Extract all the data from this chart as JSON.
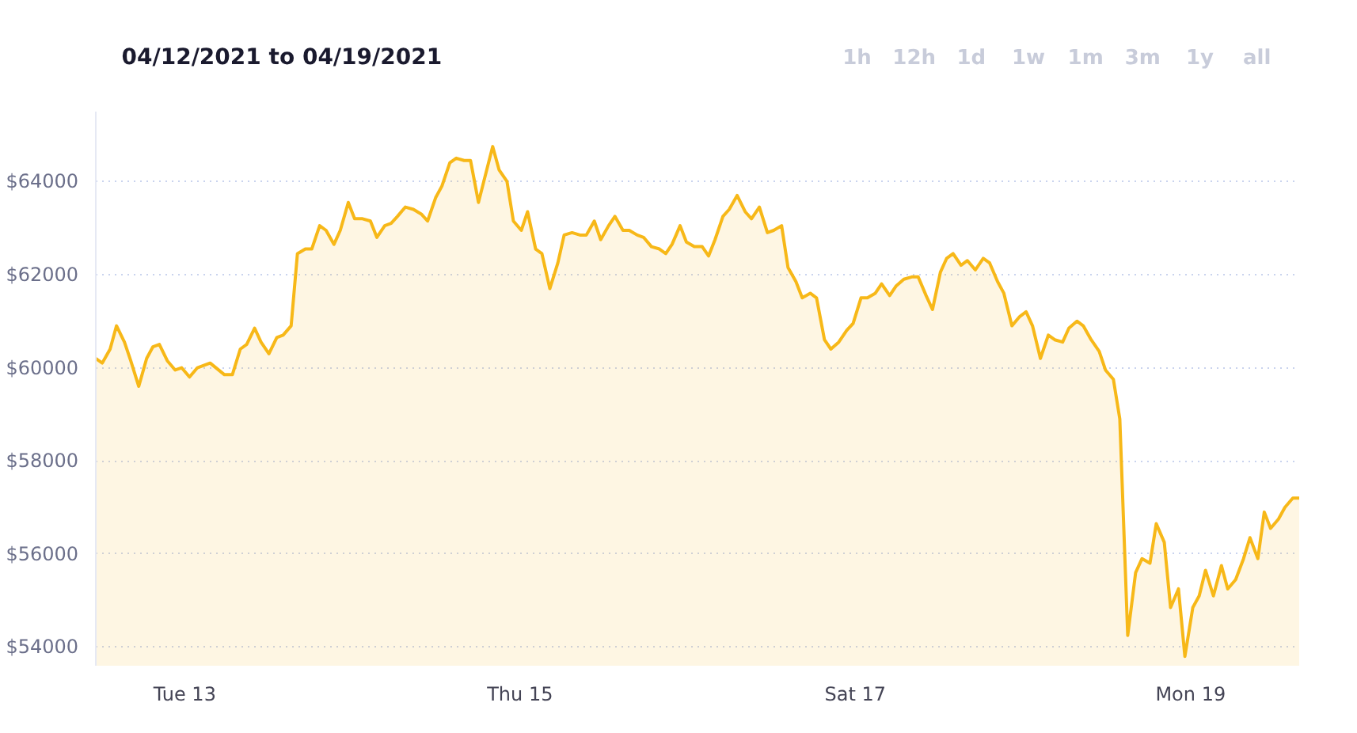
{
  "chart_data": {
    "type": "area",
    "title": "04/12/2021 to 04/19/2021",
    "annotations": [
      "1h",
      "12h",
      "1d",
      "1w",
      "1m",
      "3m",
      "1y",
      "all"
    ],
    "x": [
      "2021-04-12T11:16",
      "2021-04-12T12:11",
      "2021-04-12T13:19",
      "2021-04-12T14:14",
      "2021-04-12T15:22",
      "2021-04-12T16:16",
      "2021-04-12T17:25",
      "2021-04-12T18:33",
      "2021-04-12T19:27",
      "2021-04-12T20:22",
      "2021-04-12T21:30",
      "2021-04-12T22:38",
      "2021-04-12T23:33",
      "2021-04-13T00:41",
      "2021-04-13T01:49",
      "2021-04-13T03:38",
      "2021-04-13T05:41",
      "2021-04-13T06:49",
      "2021-04-13T07:57",
      "2021-04-13T08:52",
      "2021-04-13T10:00",
      "2021-04-13T10:55",
      "2021-04-13T12:03",
      "2021-04-13T13:11",
      "2021-04-13T14:05",
      "2021-04-13T15:14",
      "2021-04-13T16:08",
      "2021-04-13T17:16",
      "2021-04-13T18:11",
      "2021-04-13T19:19",
      "2021-04-13T20:14",
      "2021-04-13T21:22",
      "2021-04-13T22:16",
      "2021-04-13T23:25",
      "2021-04-14T00:19",
      "2021-04-14T01:27",
      "2021-04-14T02:35",
      "2021-04-14T03:30",
      "2021-04-14T04:38",
      "2021-04-14T05:33",
      "2021-04-14T06:27",
      "2021-04-14T07:35",
      "2021-04-14T08:44",
      "2021-04-14T09:52",
      "2021-04-14T10:46",
      "2021-04-14T11:55",
      "2021-04-14T12:49",
      "2021-04-14T13:57",
      "2021-04-14T14:52",
      "2021-04-14T16:00",
      "2021-04-14T16:55",
      "2021-04-14T18:03",
      "2021-04-14T20:05",
      "2021-04-14T21:00",
      "2021-04-14T22:08",
      "2021-04-14T23:03",
      "2021-04-15T00:11",
      "2021-04-15T01:05",
      "2021-04-15T02:14",
      "2021-04-15T03:08",
      "2021-04-15T04:16",
      "2021-04-15T05:25",
      "2021-04-15T06:19",
      "2021-04-15T07:27",
      "2021-04-15T08:35",
      "2021-04-15T09:30",
      "2021-04-15T10:38",
      "2021-04-15T11:33",
      "2021-04-15T12:41",
      "2021-04-15T13:35",
      "2021-04-15T14:44",
      "2021-04-15T15:38",
      "2021-04-15T16:46",
      "2021-04-15T17:41",
      "2021-04-15T18:49",
      "2021-04-15T19:57",
      "2021-04-15T20:52",
      "2021-04-15T21:46",
      "2021-04-15T22:55",
      "2021-04-15T23:49",
      "2021-04-16T00:57",
      "2021-04-16T02:05",
      "2021-04-16T03:00",
      "2021-04-16T03:55",
      "2021-04-16T05:03",
      "2021-04-16T05:57",
      "2021-04-16T07:05",
      "2021-04-16T08:14",
      "2021-04-16T09:08",
      "2021-04-16T10:16",
      "2021-04-16T11:25",
      "2021-04-16T12:19",
      "2021-04-16T13:27",
      "2021-04-16T14:22",
      "2021-04-16T15:30",
      "2021-04-16T16:24",
      "2021-04-16T17:33",
      "2021-04-16T18:27",
      "2021-04-16T19:35",
      "2021-04-16T20:30",
      "2021-04-16T21:38",
      "2021-04-16T22:46",
      "2021-04-16T23:41",
      "2021-04-17T00:49",
      "2021-04-17T01:44",
      "2021-04-17T02:52",
      "2021-04-17T03:46",
      "2021-04-17T04:55",
      "2021-04-17T05:49",
      "2021-04-17T06:57",
      "2021-04-17T08:05",
      "2021-04-17T09:00",
      "2021-04-17T10:08",
      "2021-04-17T11:03",
      "2021-04-17T12:11",
      "2021-04-17T13:05",
      "2021-04-17T14:00",
      "2021-04-17T15:08",
      "2021-04-17T16:03",
      "2021-04-17T17:11",
      "2021-04-17T18:19",
      "2021-04-17T19:14",
      "2021-04-17T20:22",
      "2021-04-17T21:16",
      "2021-04-17T22:25",
      "2021-04-17T23:33",
      "2021-04-18T00:27",
      "2021-04-18T01:22",
      "2021-04-18T02:30",
      "2021-04-18T03:38",
      "2021-04-18T04:33",
      "2021-04-18T05:41",
      "2021-04-18T06:35",
      "2021-04-18T07:44",
      "2021-04-18T08:38",
      "2021-04-18T09:46",
      "2021-04-18T10:55",
      "2021-04-18T11:49",
      "2021-04-18T12:57",
      "2021-04-18T13:52",
      "2021-04-18T15:00",
      "2021-04-18T16:08",
      "2021-04-18T17:03",
      "2021-04-18T18:11",
      "2021-04-18T19:05",
      "2021-04-18T20:14",
      "2021-04-18T21:08",
      "2021-04-18T22:16",
      "2021-04-18T23:11",
      "2021-04-19T00:19",
      "2021-04-19T01:14",
      "2021-04-19T02:08",
      "2021-04-19T03:16",
      "2021-04-19T04:25",
      "2021-04-19T05:19",
      "2021-04-19T06:27",
      "2021-04-19T07:35",
      "2021-04-19T08:30",
      "2021-04-19T09:38",
      "2021-04-19T10:33",
      "2021-04-19T11:27",
      "2021-04-19T12:35",
      "2021-04-19T13:30",
      "2021-04-19T14:38",
      "2021-04-19T15:33"
    ],
    "series": [
      {
        "color": "#f7b818",
        "values": [
          60200,
          60100,
          60400,
          60900,
          60550,
          60150,
          59600,
          60200,
          60450,
          60500,
          60150,
          59950,
          60000,
          59800,
          60000,
          60100,
          59850,
          59850,
          60400,
          60500,
          60850,
          60550,
          60300,
          60650,
          60700,
          60900,
          62450,
          62550,
          62550,
          63050,
          62950,
          62650,
          62950,
          63550,
          63200,
          63200,
          63150,
          62800,
          63050,
          63100,
          63250,
          63450,
          63400,
          63300,
          63150,
          63650,
          63900,
          64400,
          64500,
          64450,
          64450,
          63550,
          64750,
          64250,
          64000,
          63150,
          62950,
          63350,
          62550,
          62450,
          61700,
          62250,
          62850,
          62900,
          62850,
          62850,
          63150,
          62750,
          63050,
          63250,
          62950,
          62950,
          62850,
          62800,
          62600,
          62550,
          62450,
          62650,
          63050,
          62700,
          62600,
          62600,
          62400,
          62750,
          63250,
          63400,
          63700,
          63350,
          63200,
          63450,
          62900,
          62950,
          63050,
          62150,
          61850,
          61500,
          61600,
          61500,
          60600,
          60400,
          60550,
          60800,
          60950,
          61500,
          61500,
          61600,
          61800,
          61550,
          61750,
          61900,
          61950,
          61950,
          61550,
          61250,
          62050,
          62350,
          62450,
          62200,
          62300,
          62100,
          62350,
          62250,
          61850,
          61600,
          60900,
          61100,
          61200,
          60900,
          60200,
          60700,
          60600,
          60550,
          60850,
          61000,
          60900,
          60600,
          60350,
          59950,
          59750,
          58900,
          54250,
          55600,
          55900,
          55800,
          56650,
          56250,
          54850,
          55250,
          53800,
          54850,
          55100,
          55650,
          55100,
          55750,
          55250,
          55450,
          55900,
          56350,
          55900,
          56900,
          56550,
          56750,
          57000,
          57200,
          57200
        ]
      }
    ],
    "xlim": [
      "2021-04-12T11:16",
      "2021-04-19T15:33"
    ],
    "xticks": [
      {
        "value": "2021-04-13",
        "label": "Tue 13"
      },
      {
        "value": "2021-04-15",
        "label": "Thu 15"
      },
      {
        "value": "2021-04-17",
        "label": "Sat 17"
      },
      {
        "value": "2021-04-19",
        "label": "Mon 19"
      }
    ],
    "ylim": [
      53600,
      65500
    ],
    "yticks": [
      {
        "value": 54000,
        "label": "$54000"
      },
      {
        "value": 56000,
        "label": "$56000"
      },
      {
        "value": 58000,
        "label": "$58000"
      },
      {
        "value": 60000,
        "label": "$60000"
      },
      {
        "value": 62000,
        "label": "$62000"
      },
      {
        "value": 64000,
        "label": "$64000"
      }
    ],
    "grid": "y"
  }
}
